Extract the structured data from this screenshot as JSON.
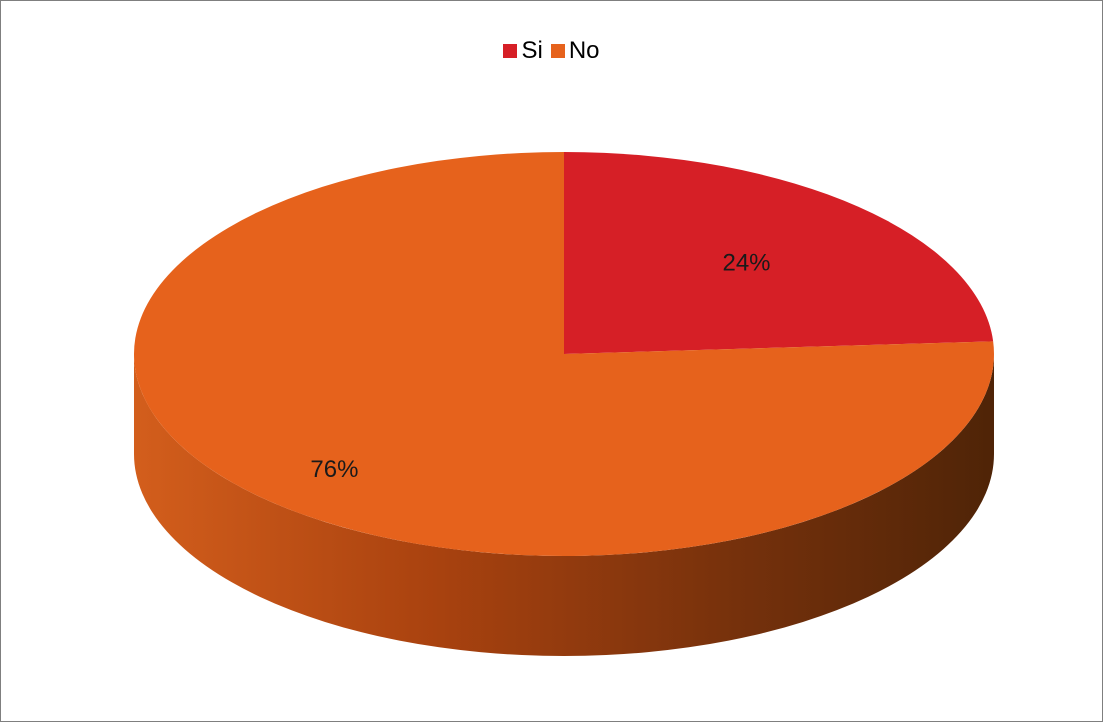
{
  "chart_data": {
    "type": "pie",
    "categories": [
      "Si",
      "No"
    ],
    "values": [
      24,
      76
    ],
    "labels": [
      "24%",
      "76%"
    ],
    "colors": [
      "#d61f26",
      "#e6621c"
    ],
    "legend_position": "top",
    "style": "3d",
    "title": ""
  }
}
